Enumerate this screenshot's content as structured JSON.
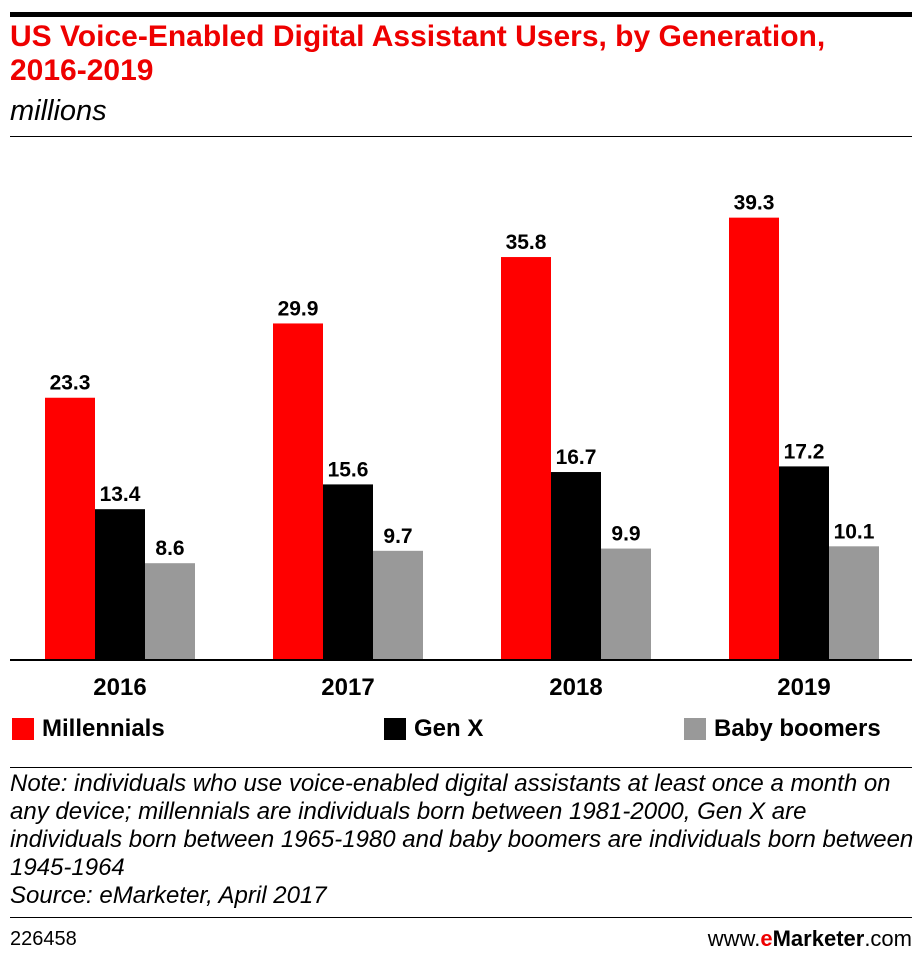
{
  "header": {
    "title": "US Voice-Enabled Digital Assistant Users, by Generation, 2016-2019",
    "subtitle": "millions"
  },
  "chart_data": {
    "type": "bar",
    "categories": [
      "2016",
      "2017",
      "2018",
      "2019"
    ],
    "series": [
      {
        "name": "Millennials",
        "color": "#ff0000",
        "values": [
          23.3,
          29.9,
          35.8,
          39.3
        ]
      },
      {
        "name": "Gen X",
        "color": "#000000",
        "values": [
          13.4,
          15.6,
          16.7,
          17.2
        ]
      },
      {
        "name": "Baby boomers",
        "color": "#999999",
        "values": [
          8.6,
          9.7,
          9.9,
          10.1
        ]
      }
    ],
    "ylim": [
      0,
      43
    ],
    "grid": false,
    "legend_position": "bottom",
    "data_labels": true
  },
  "footer": {
    "note": "Note: individuals who use voice-enabled digital assistants at least once a month on any device; millennials are individuals born between 1981-2000, Gen X are individuals born between 1965-1980 and baby boomers are individuals born between 1945-1964",
    "source": "Source: eMarketer, April 2017",
    "chart_id": "226458",
    "brand_prefix": "www.",
    "brand_e": "e",
    "brand_marketer": "Marketer",
    "brand_suffix": ".com"
  }
}
